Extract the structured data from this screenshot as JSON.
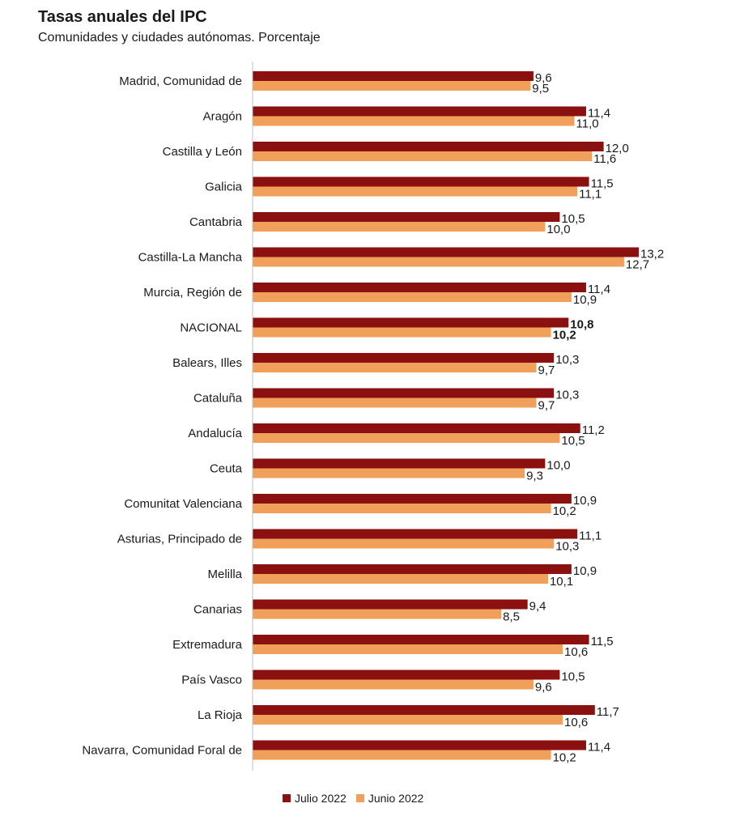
{
  "chart_data": {
    "type": "bar",
    "orientation": "horizontal",
    "title": "Tasas anuales del IPC",
    "subtitle": "Comunidades y ciudades autónomas. Porcentaje",
    "categories": [
      "Madrid, Comunidad de",
      "Aragón",
      "Castilla y León",
      "Galicia",
      "Cantabria",
      "Castilla-La Mancha",
      "Murcia, Región de",
      "NACIONAL",
      "Balears, Illes",
      "Cataluña",
      "Andalucía",
      "Ceuta",
      "Comunitat Valenciana",
      "Asturias, Principado de",
      "Melilla",
      "Canarias",
      "Extremadura",
      "País Vasco",
      "La Rioja",
      "Navarra, Comunidad Foral de"
    ],
    "series": [
      {
        "name": "Julio 2022",
        "color": "#8b1111",
        "values": [
          9.6,
          11.4,
          12.0,
          11.5,
          10.5,
          13.2,
          11.4,
          10.8,
          10.3,
          10.3,
          11.2,
          10.0,
          10.9,
          11.1,
          10.9,
          9.4,
          11.5,
          10.5,
          11.7,
          11.4
        ],
        "labels": [
          "9,6",
          "11,4",
          "12,0",
          "11,5",
          "10,5",
          "13,2",
          "11,4",
          "10,8",
          "10,3",
          "10,3",
          "11,2",
          "10,0",
          "10,9",
          "11,1",
          "10,9",
          "9,4",
          "11,5",
          "10,5",
          "11,7",
          "11,4"
        ]
      },
      {
        "name": "Junio 2022",
        "color": "#f0a05a",
        "values": [
          9.5,
          11.0,
          11.6,
          11.1,
          10.0,
          12.7,
          10.9,
          10.2,
          9.7,
          9.7,
          10.5,
          9.3,
          10.2,
          10.3,
          10.1,
          8.5,
          10.6,
          9.6,
          10.6,
          10.2
        ],
        "labels": [
          "9,5",
          "11,0",
          "11,6",
          "11,1",
          "10,0",
          "12,7",
          "10,9",
          "10,2",
          "9,7",
          "9,7",
          "10,5",
          "9,3",
          "10,2",
          "10,3",
          "10,1",
          "8,5",
          "10,6",
          "9,6",
          "10,6",
          "10,2"
        ]
      }
    ],
    "bold_category": "NACIONAL",
    "xlim": [
      0,
      13.2
    ],
    "legend_position": "bottom-center",
    "grid": false
  }
}
